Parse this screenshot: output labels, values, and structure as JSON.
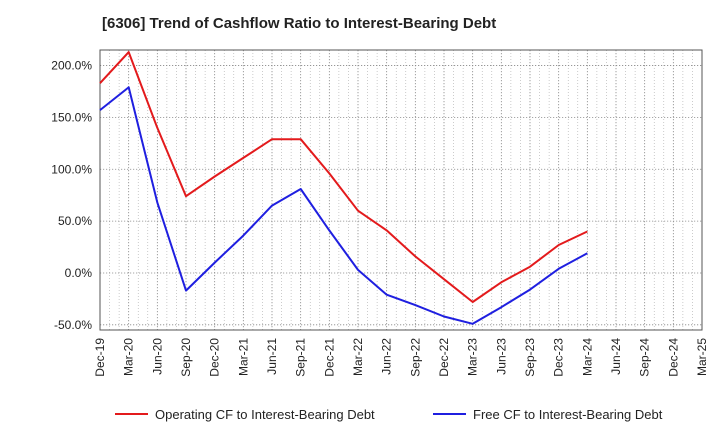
{
  "title": "[6306]  Trend of Cashflow Ratio to Interest-Bearing Debt",
  "chart_data": {
    "type": "line",
    "title": "[6306]  Trend of Cashflow Ratio to Interest-Bearing Debt",
    "xlabel": "",
    "ylabel": "",
    "categories": [
      "Dec-19",
      "Mar-20",
      "Jun-20",
      "Sep-20",
      "Dec-20",
      "Mar-21",
      "Jun-21",
      "Sep-21",
      "Dec-21",
      "Mar-22",
      "Jun-22",
      "Sep-22",
      "Dec-22",
      "Mar-23",
      "Jun-23",
      "Sep-23",
      "Dec-23",
      "Mar-24",
      "Jun-24",
      "Sep-24",
      "Dec-24",
      "Mar-25"
    ],
    "ylim": [
      -55,
      215
    ],
    "yticks": [
      -50,
      0,
      50,
      100,
      150,
      200
    ],
    "ytick_labels": [
      "-50.0%",
      "0.0%",
      "50.0%",
      "100.0%",
      "150.0%",
      "200.0%"
    ],
    "grid": true,
    "legend_position": "bottom",
    "series": [
      {
        "name": "Operating CF to Interest-Bearing Debt",
        "color": "#e31a1c",
        "values": [
          183,
          213,
          140,
          74,
          93,
          111,
          129,
          129,
          96,
          60,
          41,
          16,
          -6,
          -28,
          -9,
          6,
          27,
          40,
          null,
          null,
          null,
          null
        ]
      },
      {
        "name": "Free CF to Interest-Bearing Debt",
        "color": "#1f1fe0",
        "values": [
          157,
          179,
          68,
          -17,
          10,
          36,
          65,
          81,
          41,
          3,
          -21,
          -31,
          -42,
          -49,
          -33,
          -16,
          4,
          19,
          null,
          null,
          null,
          null
        ]
      }
    ]
  }
}
